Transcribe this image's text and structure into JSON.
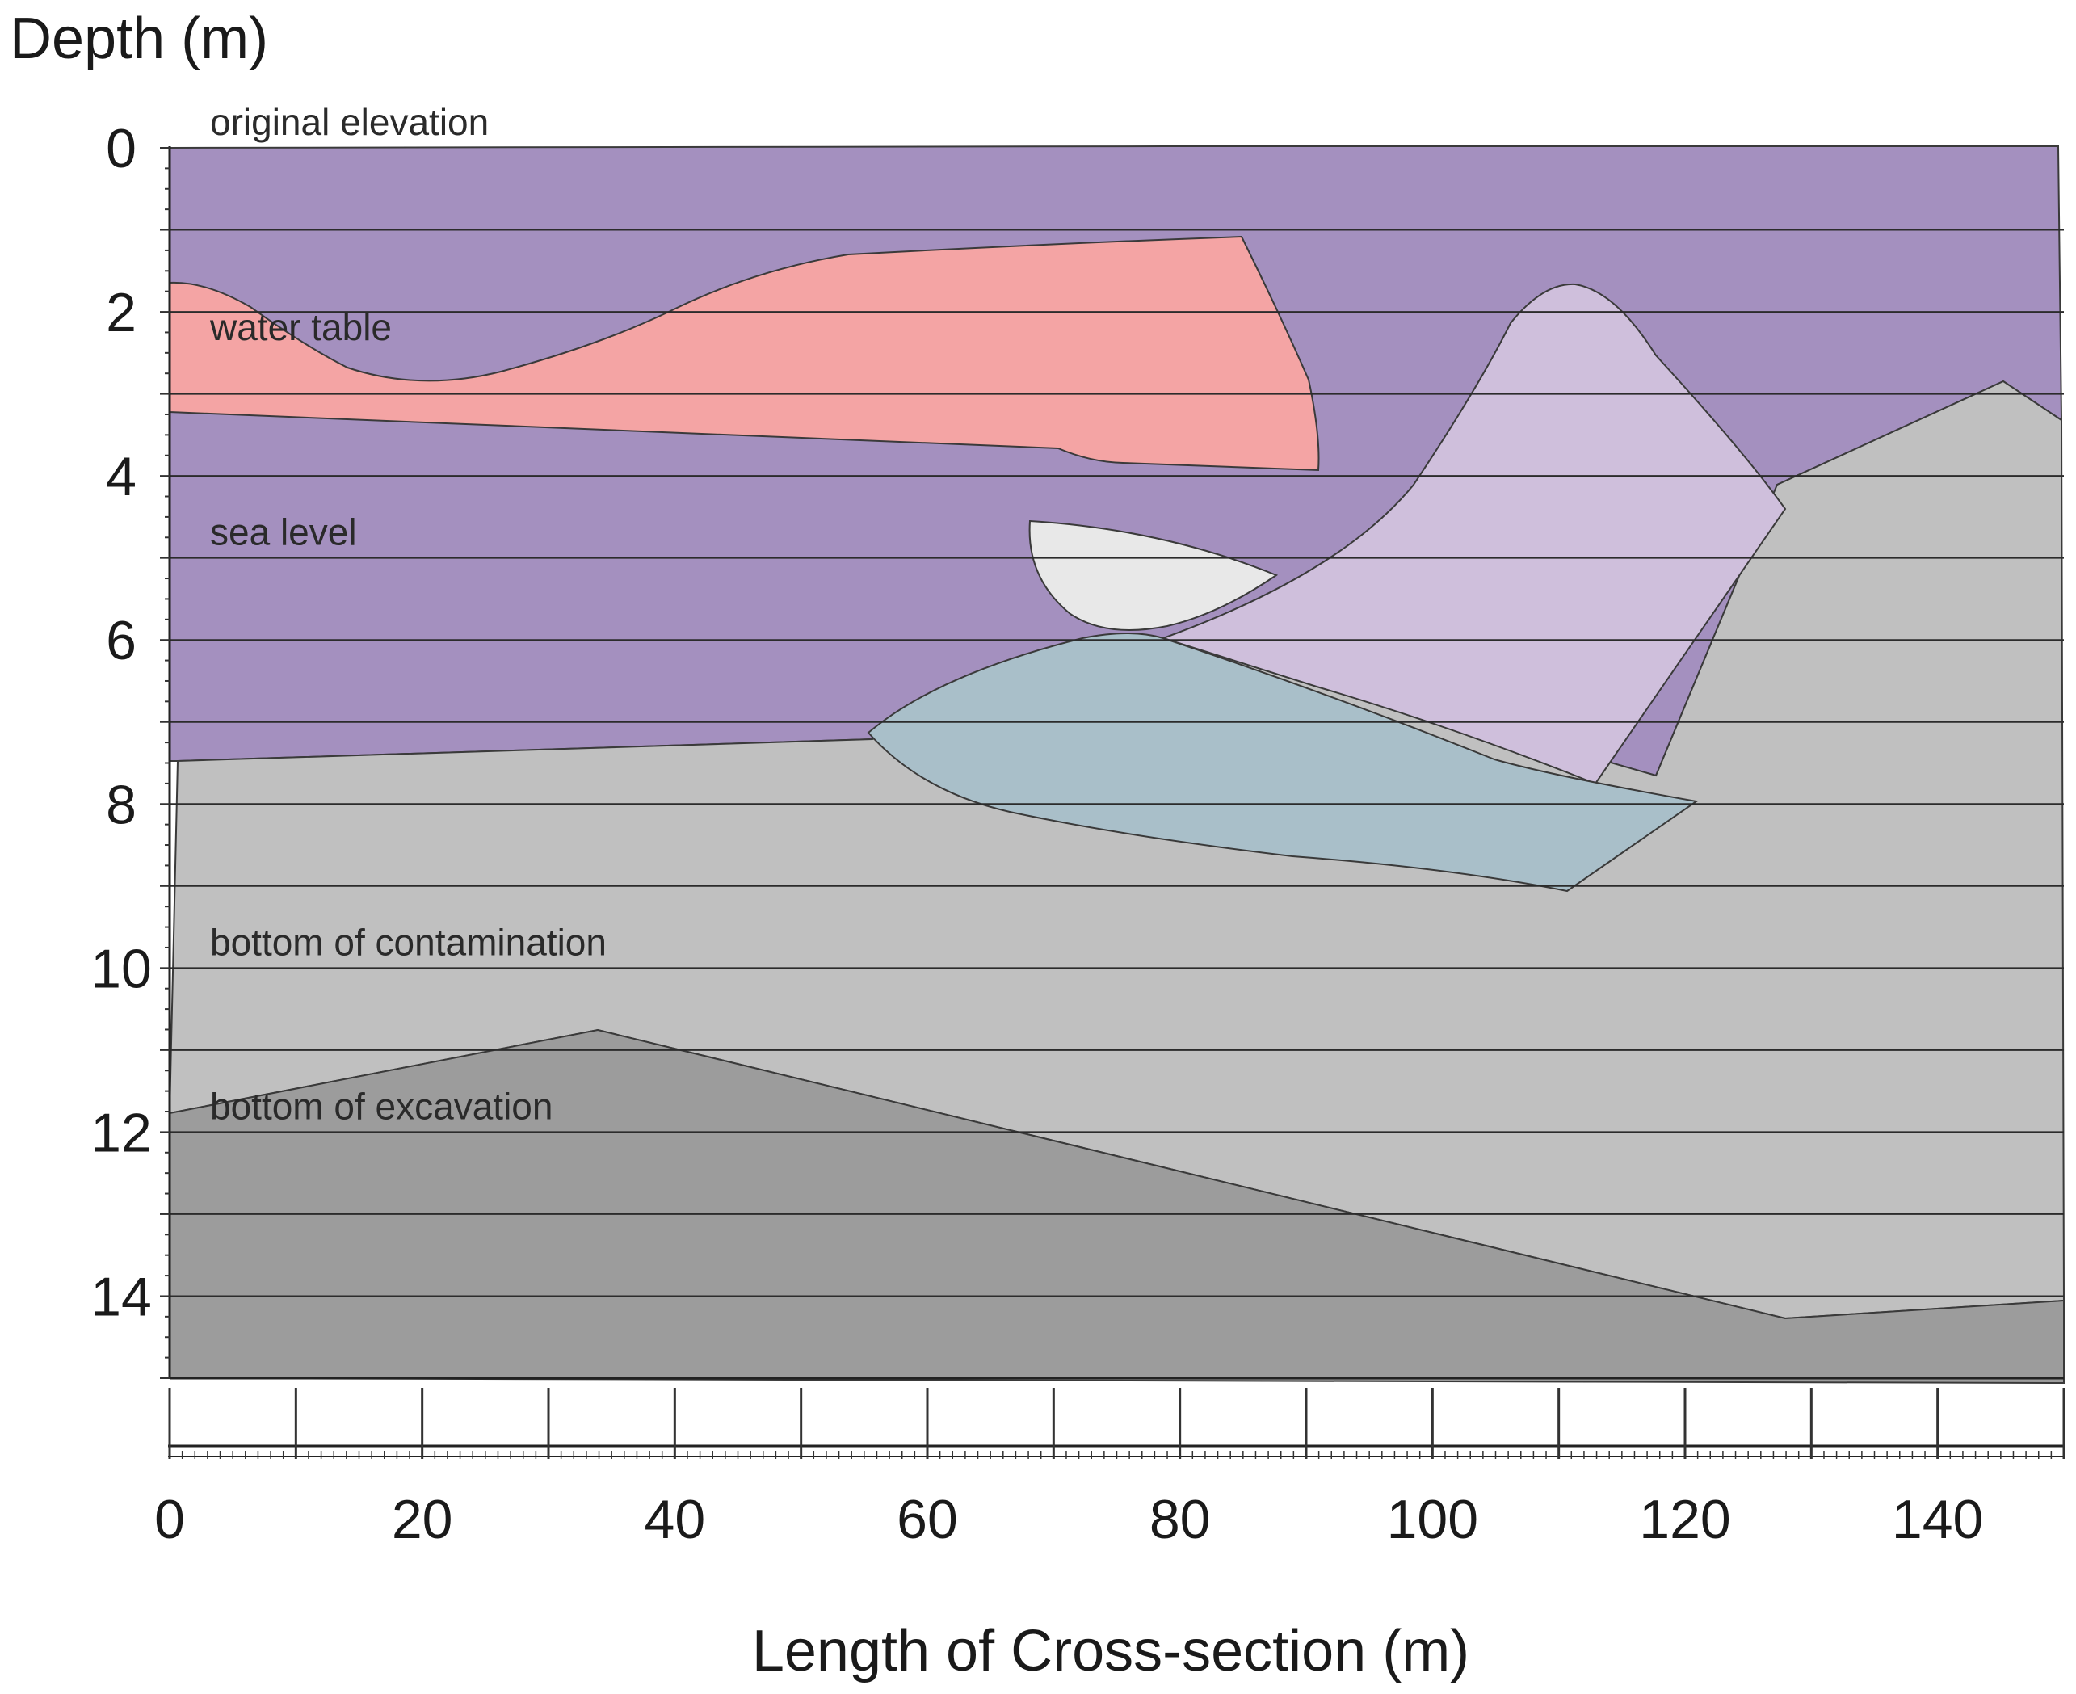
{
  "chart_data": {
    "type": "cross-section",
    "ylabel": "Depth (m)",
    "xlabel": "Length of Cross-section (m)",
    "y_ticks": [
      "0",
      "2",
      "4",
      "6",
      "8",
      "10",
      "12",
      "14"
    ],
    "x_ticks": [
      "0",
      "20",
      "40",
      "60",
      "80",
      "100",
      "120",
      "140"
    ],
    "xlim": [
      0,
      150
    ],
    "ylim": [
      0,
      15
    ],
    "reference_lines": [
      {
        "label": "original elevation",
        "depth": 0
      },
      {
        "label": "water table",
        "depth": 2.5
      },
      {
        "label": "sea level",
        "depth": 5
      },
      {
        "label": "bottom of contamination",
        "depth": 10
      },
      {
        "label": "bottom of excavation",
        "depth": 12
      }
    ],
    "layers": [
      {
        "id": "purple",
        "color": "#A490BF"
      },
      {
        "id": "light-grey",
        "color": "#C0C0C0"
      },
      {
        "id": "dark-grey",
        "color": "#9C9C9C"
      },
      {
        "id": "pink",
        "color": "#F4A4A4"
      },
      {
        "id": "lavender",
        "color": "#CFBFDC"
      },
      {
        "id": "blue-grey",
        "color": "#A9BFC9"
      },
      {
        "id": "white-lens",
        "color": "#E8E8E8"
      }
    ]
  }
}
